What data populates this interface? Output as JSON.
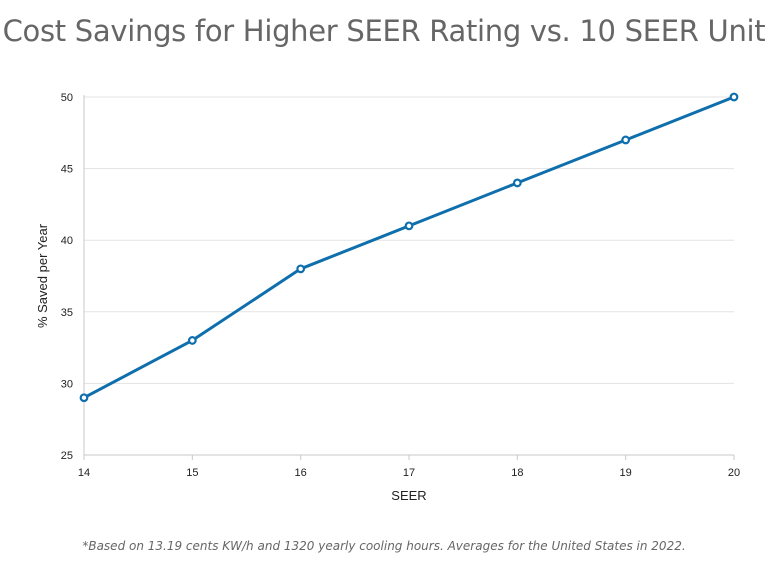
{
  "chart_data": {
    "type": "line",
    "title": "Cost Savings for Higher SEER Rating vs. 10 SEER Unit",
    "xlabel": "SEER",
    "ylabel": "% Saved per Year",
    "x": [
      14,
      15,
      16,
      17,
      18,
      19,
      20
    ],
    "series": [
      {
        "values": [
          29,
          33,
          38,
          41,
          44,
          47,
          50
        ]
      }
    ],
    "xlim": [
      14,
      20
    ],
    "ylim": [
      25,
      50
    ],
    "xticks": [
      "14",
      "15",
      "16",
      "17",
      "18",
      "19",
      "20"
    ],
    "yticks": [
      "25",
      "30",
      "35",
      "40",
      "45",
      "50"
    ],
    "grid": true,
    "line_color": "#0f6fad",
    "footnote": "*Based on 13.19 cents KW/h and 1320 yearly cooling hours. Averages for the United States in 2022."
  }
}
